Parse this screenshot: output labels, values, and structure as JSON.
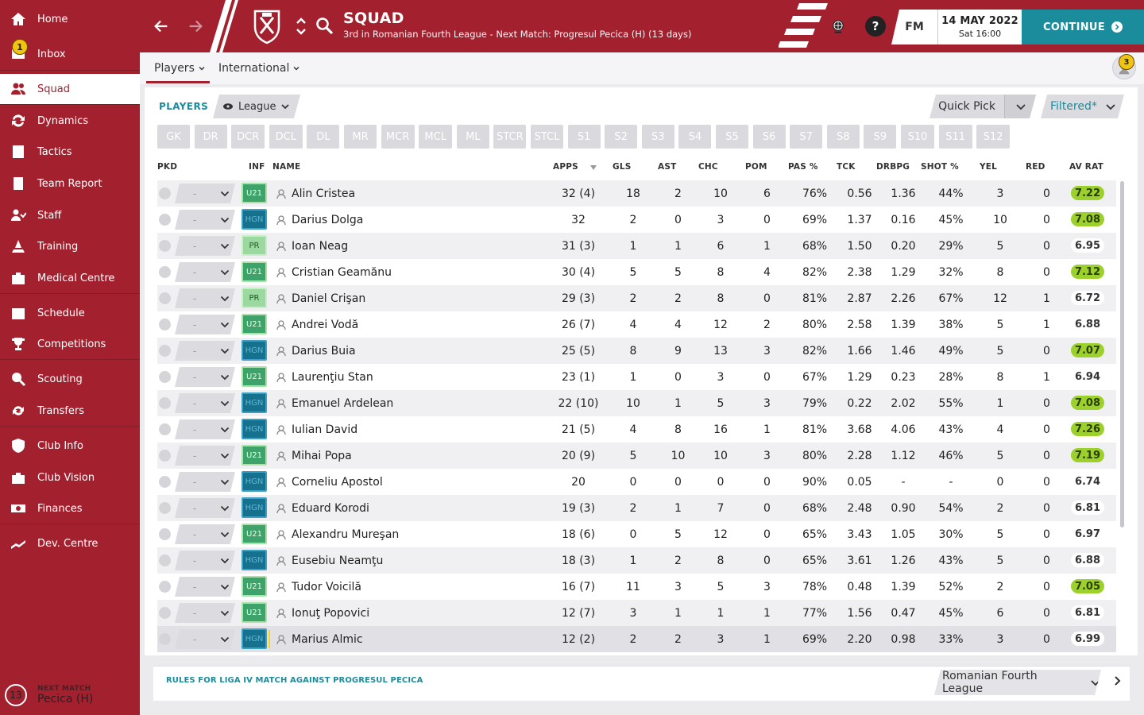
{
  "sidebar": {
    "items": [
      {
        "label": "Home",
        "icon": "home-icon"
      },
      {
        "label": "Inbox",
        "icon": "inbox-icon",
        "badge": "1"
      },
      {
        "label": "Squad",
        "icon": "squad-icon",
        "active": true
      },
      {
        "label": "Dynamics",
        "icon": "dynamics-icon"
      },
      {
        "label": "Tactics",
        "icon": "tactics-icon"
      },
      {
        "label": "Team Report",
        "icon": "report-icon"
      },
      {
        "label": "Staff",
        "icon": "staff-icon"
      },
      {
        "label": "Training",
        "icon": "training-icon"
      },
      {
        "label": "Medical Centre",
        "icon": "medical-icon"
      },
      {
        "label": "Schedule",
        "icon": "calendar-icon"
      },
      {
        "label": "Competitions",
        "icon": "trophy-icon"
      },
      {
        "label": "Scouting",
        "icon": "scouting-icon"
      },
      {
        "label": "Transfers",
        "icon": "transfers-icon"
      },
      {
        "label": "Club Info",
        "icon": "shield-icon"
      },
      {
        "label": "Club Vision",
        "icon": "vision-icon"
      },
      {
        "label": "Finances",
        "icon": "finances-icon"
      },
      {
        "label": "Dev. Centre",
        "icon": "devcentre-icon"
      }
    ],
    "next_match": {
      "label": "NEXT MATCH",
      "days": "13",
      "opponent": "Pecica (H)"
    }
  },
  "header": {
    "title": "SQUAD",
    "subtitle": "3rd in Romanian Fourth League - Next Match: Progresul Pecica (H) (13 days)",
    "fm_label": "FM",
    "date": "14 MAY 2022",
    "time": "Sat 16:00",
    "continue_label": "CONTINUE",
    "help_label": "?"
  },
  "subnav": {
    "tabs": [
      {
        "label": "Players"
      },
      {
        "label": "International"
      }
    ],
    "notifications": "3"
  },
  "toolbar": {
    "players_label": "PLAYERS",
    "league_label": "League",
    "quick_pick": "Quick Pick",
    "filtered": "Filtered*"
  },
  "positions": [
    "GK",
    "DR",
    "DCR",
    "DCL",
    "DL",
    "MR",
    "MCR",
    "MCL",
    "ML",
    "STCR",
    "STCL",
    "S1",
    "S2",
    "S3",
    "S4",
    "S5",
    "S6",
    "S7",
    "S8",
    "S9",
    "S10",
    "S11",
    "S12"
  ],
  "columns": {
    "pkd": "PKD",
    "inf": "INF",
    "name": "NAME",
    "apps": "APPS",
    "gls": "GLS",
    "ast": "AST",
    "chc": "CHC",
    "pom": "POM",
    "pas": "PAS %",
    "tck": "TCK",
    "drbpg": "DRBPG",
    "shot": "SHOT %",
    "yel": "YEL",
    "red": "RED",
    "avrat": "AV RAT"
  },
  "players": [
    {
      "pkd": "-",
      "inf": "U21",
      "name": "Alin Cristea",
      "apps": "32 (4)",
      "gls": "18",
      "ast": "2",
      "chc": "10",
      "pom": "6",
      "pas": "76%",
      "tck": "0.56",
      "drbpg": "1.36",
      "shot": "44%",
      "yel": "3",
      "red": "0",
      "avrat": "7.22",
      "hi": true
    },
    {
      "pkd": "-",
      "inf": "HGN",
      "name": "Darius Dolga",
      "apps": "32",
      "gls": "2",
      "ast": "0",
      "chc": "3",
      "pom": "0",
      "pas": "69%",
      "tck": "1.37",
      "drbpg": "0.16",
      "shot": "45%",
      "yel": "10",
      "red": "0",
      "avrat": "7.08",
      "hi": true
    },
    {
      "pkd": "-",
      "inf": "PR",
      "name": "Ioan Neag",
      "apps": "31 (3)",
      "gls": "1",
      "ast": "1",
      "chc": "6",
      "pom": "1",
      "pas": "68%",
      "tck": "1.50",
      "drbpg": "0.20",
      "shot": "29%",
      "yel": "5",
      "red": "0",
      "avrat": "6.95",
      "hi": false
    },
    {
      "pkd": "-",
      "inf": "U21",
      "name": "Cristian Geamănu",
      "apps": "30 (4)",
      "gls": "5",
      "ast": "5",
      "chc": "8",
      "pom": "4",
      "pas": "82%",
      "tck": "2.38",
      "drbpg": "1.29",
      "shot": "32%",
      "yel": "8",
      "red": "0",
      "avrat": "7.12",
      "hi": true
    },
    {
      "pkd": "-",
      "inf": "PR",
      "name": "Daniel Crişan",
      "apps": "29 (3)",
      "gls": "2",
      "ast": "2",
      "chc": "8",
      "pom": "0",
      "pas": "81%",
      "tck": "2.87",
      "drbpg": "2.26",
      "shot": "67%",
      "yel": "12",
      "red": "1",
      "avrat": "6.72",
      "hi": false
    },
    {
      "pkd": "-",
      "inf": "U21",
      "name": "Andrei Vodă",
      "apps": "26 (7)",
      "gls": "4",
      "ast": "4",
      "chc": "12",
      "pom": "2",
      "pas": "80%",
      "tck": "2.58",
      "drbpg": "1.39",
      "shot": "38%",
      "yel": "5",
      "red": "1",
      "avrat": "6.88",
      "hi": false
    },
    {
      "pkd": "-",
      "inf": "HGN",
      "name": "Darius Buia",
      "apps": "25 (5)",
      "gls": "8",
      "ast": "9",
      "chc": "13",
      "pom": "3",
      "pas": "82%",
      "tck": "1.66",
      "drbpg": "1.46",
      "shot": "49%",
      "yel": "5",
      "red": "0",
      "avrat": "7.07",
      "hi": true
    },
    {
      "pkd": "-",
      "inf": "U21",
      "name": "Laurenţiu Stan",
      "apps": "23 (1)",
      "gls": "1",
      "ast": "0",
      "chc": "3",
      "pom": "0",
      "pas": "67%",
      "tck": "1.29",
      "drbpg": "0.23",
      "shot": "28%",
      "yel": "8",
      "red": "1",
      "avrat": "6.94",
      "hi": false
    },
    {
      "pkd": "-",
      "inf": "HGN",
      "name": "Emanuel Ardelean",
      "apps": "22 (10)",
      "gls": "10",
      "ast": "1",
      "chc": "5",
      "pom": "3",
      "pas": "79%",
      "tck": "0.22",
      "drbpg": "2.02",
      "shot": "55%",
      "yel": "1",
      "red": "0",
      "avrat": "7.08",
      "hi": true
    },
    {
      "pkd": "-",
      "inf": "HGN",
      "name": "Iulian David",
      "apps": "21 (5)",
      "gls": "4",
      "ast": "8",
      "chc": "16",
      "pom": "1",
      "pas": "81%",
      "tck": "3.68",
      "drbpg": "4.06",
      "shot": "43%",
      "yel": "4",
      "red": "0",
      "avrat": "7.26",
      "hi": true
    },
    {
      "pkd": "-",
      "inf": "U21",
      "name": "Mihai Popa",
      "apps": "20 (9)",
      "gls": "5",
      "ast": "10",
      "chc": "10",
      "pom": "3",
      "pas": "80%",
      "tck": "2.28",
      "drbpg": "1.12",
      "shot": "46%",
      "yel": "5",
      "red": "0",
      "avrat": "7.19",
      "hi": true
    },
    {
      "pkd": "-",
      "inf": "HGN",
      "name": "Corneliu Apostol",
      "apps": "20",
      "gls": "0",
      "ast": "0",
      "chc": "0",
      "pom": "0",
      "pas": "90%",
      "tck": "0.05",
      "drbpg": "-",
      "shot": "-",
      "yel": "0",
      "red": "0",
      "avrat": "6.74",
      "hi": false
    },
    {
      "pkd": "-",
      "inf": "HGN",
      "name": "Eduard Korodi",
      "apps": "19 (3)",
      "gls": "2",
      "ast": "1",
      "chc": "7",
      "pom": "0",
      "pas": "68%",
      "tck": "2.48",
      "drbpg": "0.90",
      "shot": "54%",
      "yel": "2",
      "red": "0",
      "avrat": "6.81",
      "hi": false
    },
    {
      "pkd": "-",
      "inf": "U21",
      "name": "Alexandru Mureşan",
      "apps": "18 (6)",
      "gls": "0",
      "ast": "5",
      "chc": "12",
      "pom": "0",
      "pas": "65%",
      "tck": "3.43",
      "drbpg": "1.05",
      "shot": "30%",
      "yel": "5",
      "red": "0",
      "avrat": "6.97",
      "hi": false
    },
    {
      "pkd": "-",
      "inf": "HGN",
      "name": "Eusebiu Neamţu",
      "apps": "18 (3)",
      "gls": "1",
      "ast": "2",
      "chc": "8",
      "pom": "0",
      "pas": "65%",
      "tck": "3.61",
      "drbpg": "1.26",
      "shot": "43%",
      "yel": "5",
      "red": "0",
      "avrat": "6.88",
      "hi": false
    },
    {
      "pkd": "-",
      "inf": "U21",
      "name": "Tudor Voicilă",
      "apps": "16 (7)",
      "gls": "11",
      "ast": "3",
      "chc": "5",
      "pom": "3",
      "pas": "78%",
      "tck": "0.48",
      "drbpg": "1.39",
      "shot": "52%",
      "yel": "2",
      "red": "0",
      "avrat": "7.05",
      "hi": true
    },
    {
      "pkd": "-",
      "inf": "U21",
      "name": "Ionuţ Popovici",
      "apps": "12 (7)",
      "gls": "3",
      "ast": "1",
      "chc": "1",
      "pom": "1",
      "pas": "77%",
      "tck": "1.56",
      "drbpg": "0.47",
      "shot": "45%",
      "yel": "6",
      "red": "0",
      "avrat": "6.81",
      "hi": false
    },
    {
      "pkd": "-",
      "inf": "HGN",
      "name": "Marius Almic",
      "apps": "12 (2)",
      "gls": "2",
      "ast": "2",
      "chc": "3",
      "pom": "1",
      "pas": "69%",
      "tck": "2.20",
      "drbpg": "0.98",
      "shot": "33%",
      "yel": "3",
      "red": "0",
      "avrat": "6.99",
      "hi": false
    }
  ],
  "footer": {
    "rules": "RULES FOR LIGA IV MATCH AGAINST PROGRESUL PECICA",
    "league": "Romanian Fourth League"
  },
  "colors": {
    "primary": "#a3212f",
    "accent": "#1b8c9c",
    "rating_high": "#9bd02d"
  }
}
